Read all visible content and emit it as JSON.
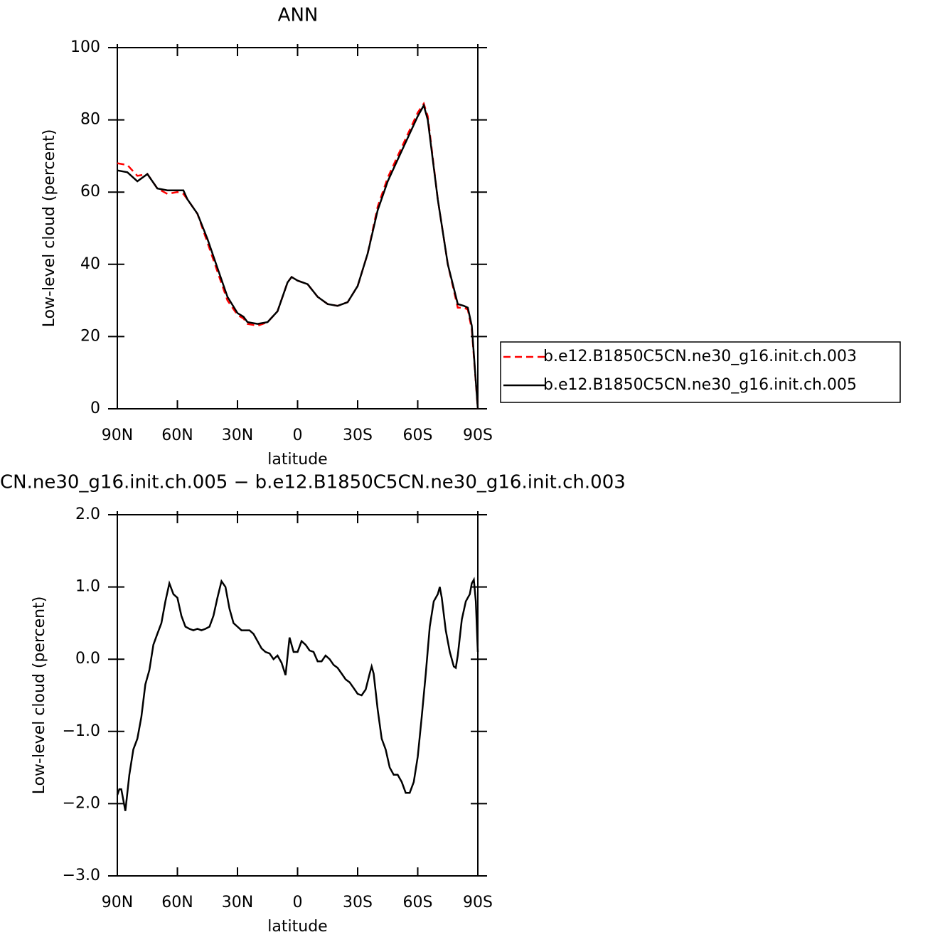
{
  "chart_data": [
    {
      "type": "line",
      "title": "ANN",
      "xlabel": "latitude",
      "ylabel": "Low-level cloud (percent)",
      "x": [
        90,
        85,
        80,
        75,
        70,
        65,
        60,
        57,
        55,
        50,
        45,
        40,
        35,
        30,
        27,
        25,
        20,
        15,
        10,
        5,
        3,
        0,
        -5,
        -10,
        -15,
        -20,
        -25,
        -30,
        -35,
        -40,
        -45,
        -50,
        -55,
        -60,
        -63,
        -65,
        -70,
        -75,
        -80,
        -83,
        -85,
        -87,
        -90
      ],
      "xlim": [
        90,
        -90
      ],
      "xticks": [
        {
          "value": 90,
          "label": "90N"
        },
        {
          "value": 60,
          "label": "60N"
        },
        {
          "value": 30,
          "label": "30N"
        },
        0,
        {
          "value": -30,
          "label": "30S"
        },
        {
          "value": -60,
          "label": "60S"
        },
        {
          "value": -90,
          "label": "90S"
        }
      ],
      "ylim": [
        0,
        100
      ],
      "yticks": [
        0,
        20,
        40,
        60,
        80,
        100
      ],
      "legend": "right",
      "series": [
        {
          "name": "b.e12.B1850C5CN.ne30_g16.init.ch.003",
          "color": "#ff0000",
          "style": "dashed",
          "values": [
            68,
            67.5,
            64.5,
            65,
            61,
            59.5,
            60,
            59.5,
            58,
            54,
            46,
            38,
            30,
            26,
            25,
            23.5,
            23,
            24,
            27,
            35,
            36.5,
            35.5,
            34.5,
            31,
            29,
            28.5,
            29.5,
            34,
            43,
            56,
            64,
            70,
            76,
            82,
            84.5,
            81,
            58,
            40,
            28,
            28,
            27.5,
            22,
            0
          ]
        },
        {
          "name": "b.e12.B1850C5CN.ne30_g16.init.ch.005",
          "color": "#000000",
          "style": "solid",
          "values": [
            66,
            65.5,
            63,
            65,
            61,
            60.5,
            60.5,
            60.5,
            58,
            54,
            47,
            39,
            31,
            26.5,
            25.5,
            24,
            23.5,
            24,
            27,
            35,
            36.5,
            35.5,
            34.5,
            31,
            29,
            28.5,
            29.5,
            34,
            43,
            55,
            63,
            69,
            75,
            81,
            84,
            80,
            58,
            40,
            29,
            28.5,
            28,
            23,
            0
          ]
        }
      ]
    },
    {
      "type": "line",
      "title": "CN.ne30_g16.init.ch.005 − b.e12.B1850C5CN.ne30_g16.init.ch.003",
      "xlabel": "latitude",
      "ylabel": "Low-level cloud (percent)",
      "x": [
        90,
        89,
        88,
        86,
        84,
        82,
        80,
        78,
        76,
        74,
        72,
        70,
        68,
        66,
        64,
        62,
        60,
        58,
        56,
        54,
        52,
        50,
        48,
        46,
        44,
        42,
        40,
        38,
        36,
        34,
        32,
        30,
        28,
        26,
        24,
        22,
        20,
        18,
        16,
        14,
        12,
        10,
        8,
        6,
        4,
        2,
        0,
        -2,
        -4,
        -6,
        -8,
        -10,
        -12,
        -14,
        -16,
        -18,
        -20,
        -22,
        -24,
        -26,
        -28,
        -30,
        -32,
        -34,
        -36,
        -37,
        -38,
        -40,
        -42,
        -44,
        -46,
        -48,
        -50,
        -52,
        -54,
        -56,
        -58,
        -60,
        -62,
        -64,
        -66,
        -68,
        -70,
        -71,
        -72,
        -74,
        -76,
        -78,
        -79,
        -80,
        -82,
        -84,
        -85,
        -86,
        -87,
        -88,
        -89,
        -90
      ],
      "xlim": [
        90,
        -90
      ],
      "xticks": [
        {
          "value": 90,
          "label": "90N"
        },
        {
          "value": 60,
          "label": "60N"
        },
        {
          "value": 30,
          "label": "30N"
        },
        0,
        {
          "value": -30,
          "label": "30S"
        },
        {
          "value": -60,
          "label": "60S"
        },
        {
          "value": -90,
          "label": "90S"
        }
      ],
      "ylim": [
        -3,
        2
      ],
      "yticks": [
        {
          "value": -3,
          "label": "−3.0"
        },
        {
          "value": -2,
          "label": "−2.0"
        },
        {
          "value": -1,
          "label": "−1.0"
        },
        {
          "value": 0,
          "label": "0.0"
        },
        {
          "value": 1,
          "label": "1.0"
        },
        {
          "value": 2,
          "label": "2.0"
        }
      ],
      "series": [
        {
          "color": "#000000",
          "style": "solid",
          "values": [
            -1.88,
            -1.8,
            -1.8,
            -2.1,
            -1.6,
            -1.25,
            -1.1,
            -0.8,
            -0.35,
            -0.15,
            0.2,
            0.35,
            0.5,
            0.8,
            1.05,
            0.9,
            0.85,
            0.6,
            0.45,
            0.42,
            0.4,
            0.42,
            0.4,
            0.42,
            0.45,
            0.6,
            0.85,
            1.08,
            1.0,
            0.7,
            0.5,
            0.45,
            0.4,
            0.4,
            0.4,
            0.35,
            0.25,
            0.15,
            0.1,
            0.08,
            0.0,
            0.05,
            -0.05,
            -0.22,
            0.3,
            0.1,
            0.1,
            0.25,
            0.2,
            0.12,
            0.1,
            -0.03,
            -0.03,
            0.05,
            0.0,
            -0.08,
            -0.12,
            -0.2,
            -0.28,
            -0.32,
            -0.4,
            -0.48,
            -0.5,
            -0.42,
            -0.2,
            -0.1,
            -0.2,
            -0.7,
            -1.1,
            -1.25,
            -1.5,
            -1.6,
            -1.6,
            -1.7,
            -1.85,
            -1.85,
            -1.7,
            -1.35,
            -0.8,
            -0.2,
            0.45,
            0.8,
            0.9,
            1.0,
            0.85,
            0.4,
            0.1,
            -0.1,
            -0.12,
            0.05,
            0.55,
            0.8,
            0.85,
            0.9,
            1.05,
            1.1,
            0.8,
            0.1
          ]
        }
      ]
    }
  ]
}
